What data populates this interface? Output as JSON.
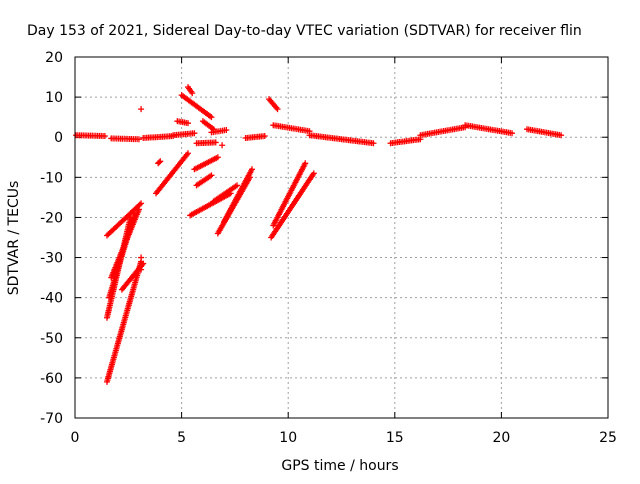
{
  "chart_data": {
    "type": "scatter",
    "title": "Day 153 of 2021, Sidereal Day-to-day VTEC variation (SDTVAR) for receiver flin",
    "xlabel": "GPS time / hours",
    "ylabel": "SDTVAR / TECUs",
    "xlim": [
      0,
      25
    ],
    "ylim": [
      -70,
      20
    ],
    "xticks": [
      0,
      5,
      10,
      15,
      20,
      25
    ],
    "yticks": [
      -70,
      -60,
      -50,
      -40,
      -30,
      -20,
      -10,
      0,
      10,
      20
    ],
    "xtick_labels": [
      "0",
      "5",
      "10",
      "15",
      "20",
      "25"
    ],
    "ytick_labels": [
      "-70",
      "-60",
      "-50",
      "-40",
      "-30",
      "-20",
      "-10",
      "0",
      "10",
      "20"
    ],
    "grid": true,
    "marker": "plus",
    "color": "#ff0000",
    "segments": [
      {
        "x0": 0.05,
        "y0": 0.5,
        "x1": 1.4,
        "y1": 0.3
      },
      {
        "x0": 1.7,
        "y0": -0.3,
        "x1": 3.0,
        "y1": -0.5
      },
      {
        "x0": 3.2,
        "y0": -0.2,
        "x1": 4.6,
        "y1": 0.3
      },
      {
        "x0": 4.6,
        "y0": 0.5,
        "x1": 5.6,
        "y1": 1.0
      },
      {
        "x0": 6.4,
        "y0": 1.2,
        "x1": 7.1,
        "y1": 1.8
      },
      {
        "x0": 8.0,
        "y0": -0.2,
        "x1": 8.9,
        "y1": 0.3
      },
      {
        "x0": 9.3,
        "y0": 3.0,
        "x1": 11.0,
        "y1": 1.5
      },
      {
        "x0": 11.0,
        "y0": 0.5,
        "x1": 14.0,
        "y1": -1.5
      },
      {
        "x0": 14.8,
        "y0": -1.5,
        "x1": 16.2,
        "y1": -0.5
      },
      {
        "x0": 16.2,
        "y0": 0.5,
        "x1": 18.3,
        "y1": 2.5
      },
      {
        "x0": 18.3,
        "y0": 3.0,
        "x1": 20.5,
        "y1": 1.0
      },
      {
        "x0": 21.2,
        "y0": 2.0,
        "x1": 22.8,
        "y1": 0.5
      },
      {
        "x0": 5.0,
        "y0": 10.5,
        "x1": 6.4,
        "y1": 5.0
      },
      {
        "x0": 5.3,
        "y0": 12.5,
        "x1": 5.5,
        "y1": 11.0
      },
      {
        "x0": 4.8,
        "y0": 4.0,
        "x1": 5.3,
        "y1": 3.5
      },
      {
        "x0": 6.0,
        "y0": 4.0,
        "x1": 6.5,
        "y1": 2.0
      },
      {
        "x0": 9.1,
        "y0": 9.5,
        "x1": 9.5,
        "y1": 7.0
      },
      {
        "x0": 5.7,
        "y0": -1.5,
        "x1": 6.6,
        "y1": -1.3
      },
      {
        "x0": 3.8,
        "y0": -14.0,
        "x1": 5.3,
        "y1": -4.0
      },
      {
        "x0": 3.9,
        "y0": -6.5,
        "x1": 4.0,
        "y1": -6.0
      },
      {
        "x0": 5.4,
        "y0": -19.5,
        "x1": 7.3,
        "y1": -14.0
      },
      {
        "x0": 5.6,
        "y0": -8.0,
        "x1": 6.7,
        "y1": -5.0
      },
      {
        "x0": 5.7,
        "y0": -12.0,
        "x1": 6.4,
        "y1": -9.5
      },
      {
        "x0": 6.7,
        "y0": -24.0,
        "x1": 8.2,
        "y1": -10.0
      },
      {
        "x0": 7.0,
        "y0": -21.0,
        "x1": 8.3,
        "y1": -8.0
      },
      {
        "x0": 6.5,
        "y0": -16.0,
        "x1": 7.6,
        "y1": -12.0
      },
      {
        "x0": 9.2,
        "y0": -25.0,
        "x1": 11.2,
        "y1": -9.0
      },
      {
        "x0": 9.3,
        "y0": -22.0,
        "x1": 10.8,
        "y1": -6.5
      },
      {
        "x0": 1.5,
        "y0": -24.5,
        "x1": 3.1,
        "y1": -16.5
      },
      {
        "x0": 1.5,
        "y0": -45.0,
        "x1": 2.6,
        "y1": -20.0
      },
      {
        "x0": 1.6,
        "y0": -40.0,
        "x1": 2.8,
        "y1": -19.0
      },
      {
        "x0": 1.7,
        "y0": -35.0,
        "x1": 3.0,
        "y1": -18.0
      },
      {
        "x0": 1.5,
        "y0": -61.0,
        "x1": 3.1,
        "y1": -31.0
      },
      {
        "x0": 2.2,
        "y0": -38.0,
        "x1": 3.2,
        "y1": -31.5
      }
    ],
    "points": [
      {
        "x": 3.1,
        "y": 7.0
      },
      {
        "x": 3.1,
        "y": -30.0
      },
      {
        "x": 3.1,
        "y": -33.0
      },
      {
        "x": 6.9,
        "y": -2.0
      }
    ]
  }
}
